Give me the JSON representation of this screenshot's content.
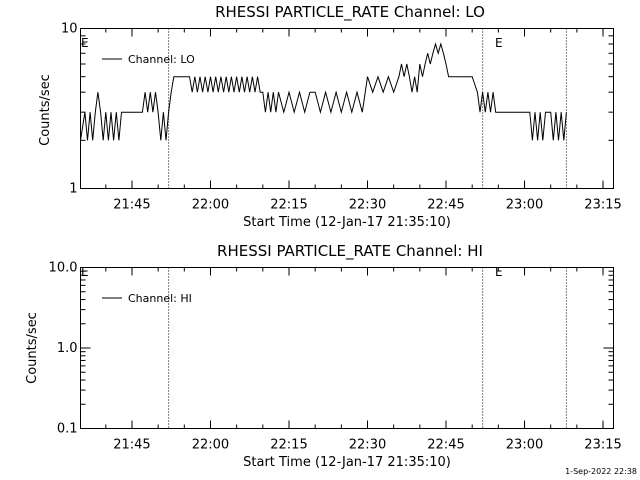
{
  "chart_data": [
    {
      "type": "line",
      "title": "RHESSI PARTICLE_RATE Channel: LO",
      "xlabel": "Start Time (12-Jan-17 21:35:10)",
      "ylabel": "Counts/sec",
      "ylog": true,
      "ylim": [
        1,
        10
      ],
      "xlim": [
        "21:35:10",
        "23:17:00"
      ],
      "ytick_labels": [
        "1",
        "10"
      ],
      "yticks": [
        1,
        10
      ],
      "xtick_labels": [
        "21:45",
        "22:00",
        "22:15",
        "22:30",
        "22:45",
        "23:00",
        "23:15"
      ],
      "legend": {
        "label": "Channel: LO",
        "placement": "top-left"
      },
      "event_markers": [
        {
          "label": "E",
          "time": "21:35:10"
        },
        {
          "label": "E",
          "time": "22:52:00"
        }
      ],
      "vlines": [
        "21:52:00",
        "22:52:00",
        "23:08:00"
      ],
      "series": [
        {
          "name": "Channel: LO",
          "x": [
            "21:35:10",
            "21:36:00",
            "21:36:30",
            "21:37:00",
            "21:37:30",
            "21:38:00",
            "21:38:30",
            "21:39:00",
            "21:39:30",
            "21:40:00",
            "21:40:30",
            "21:41:00",
            "21:41:30",
            "21:42:00",
            "21:42:30",
            "21:43:00",
            "21:45:00",
            "21:47:00",
            "21:47:30",
            "21:48:00",
            "21:48:30",
            "21:49:00",
            "21:49:30",
            "21:50:00",
            "21:50:30",
            "21:51:00",
            "21:51:30",
            "21:52:00",
            "21:52:30",
            "21:53:00",
            "21:56:00",
            "21:56:30",
            "21:57:00",
            "21:57:30",
            "21:58:00",
            "21:58:30",
            "21:59:00",
            "21:59:30",
            "22:00:00",
            "22:00:30",
            "22:01:00",
            "22:01:30",
            "22:02:00",
            "22:02:30",
            "22:03:00",
            "22:03:30",
            "22:04:00",
            "22:04:30",
            "22:05:00",
            "22:05:30",
            "22:06:00",
            "22:06:30",
            "22:07:00",
            "22:07:30",
            "22:08:00",
            "22:08:30",
            "22:09:00",
            "22:09:30",
            "22:10:00",
            "22:10:30",
            "22:11:00",
            "22:11:30",
            "22:12:00",
            "22:12:30",
            "22:13:00",
            "22:14:00",
            "22:15:00",
            "22:16:00",
            "22:17:00",
            "22:18:00",
            "22:19:00",
            "22:20:00",
            "22:21:00",
            "22:22:00",
            "22:23:00",
            "22:24:00",
            "22:25:00",
            "22:26:00",
            "22:27:00",
            "22:28:00",
            "22:29:00",
            "22:30:00",
            "22:31:00",
            "22:32:00",
            "22:33:00",
            "22:34:00",
            "22:35:00",
            "22:36:00",
            "22:36:30",
            "22:37:00",
            "22:37:30",
            "22:38:00",
            "22:38:30",
            "22:39:00",
            "22:39:30",
            "22:40:00",
            "22:40:30",
            "22:41:00",
            "22:41:30",
            "22:42:00",
            "22:42:30",
            "22:43:00",
            "22:43:30",
            "22:44:00",
            "22:44:30",
            "22:45:00",
            "22:45:30",
            "22:46:00",
            "22:47:00",
            "22:48:00",
            "22:49:00",
            "22:50:00",
            "22:51:00",
            "22:51:30",
            "22:52:00",
            "22:52:30",
            "22:53:00",
            "22:53:30",
            "22:54:00",
            "22:54:30",
            "22:55:00",
            "22:56:00",
            "22:57:00",
            "22:58:00",
            "22:59:00",
            "23:00:00",
            "23:01:00",
            "23:01:30",
            "23:02:00",
            "23:02:30",
            "23:03:00",
            "23:03:30",
            "23:04:00",
            "23:05:00",
            "23:05:30",
            "23:06:00",
            "23:06:30",
            "23:07:00",
            "23:07:30",
            "23:08:00"
          ],
          "y": [
            2,
            3,
            2,
            3,
            2,
            3,
            4,
            3,
            2,
            3,
            2,
            3,
            2,
            3,
            2,
            3,
            3,
            3,
            4,
            3,
            4,
            3,
            4,
            3,
            2,
            3,
            2,
            3,
            4,
            5,
            5,
            4,
            5,
            4,
            5,
            4,
            5,
            4,
            5,
            4,
            5,
            4,
            5,
            4,
            5,
            4,
            5,
            4,
            5,
            4,
            5,
            4,
            5,
            4,
            5,
            4,
            5,
            4,
            4,
            3,
            4,
            3,
            4,
            3,
            4,
            3,
            4,
            3,
            4,
            3,
            4,
            4,
            3,
            4,
            3,
            4,
            3,
            4,
            3,
            4,
            3,
            5,
            4,
            5,
            4,
            5,
            4,
            5,
            6,
            5,
            6,
            5,
            4,
            5,
            4,
            6,
            5,
            6,
            7,
            6,
            7,
            8,
            7,
            8,
            7,
            6,
            5,
            5,
            5,
            5,
            5,
            5,
            4,
            3,
            4,
            3,
            4,
            3,
            4,
            3,
            3,
            3,
            3,
            3,
            3,
            3,
            3,
            2,
            3,
            2,
            3,
            2,
            3,
            3,
            2,
            3,
            2,
            3,
            2,
            3
          ]
        }
      ]
    },
    {
      "type": "line",
      "title": "RHESSI PARTICLE_RATE Channel: HI",
      "xlabel": "Start Time (12-Jan-17 21:35:10)",
      "ylabel": "Counts/sec",
      "ylog": true,
      "ylim": [
        0.1,
        10
      ],
      "xlim": [
        "21:35:10",
        "23:17:00"
      ],
      "ytick_labels": [
        "0.1",
        "1.0",
        "10.0"
      ],
      "yticks": [
        0.1,
        1,
        10
      ],
      "xtick_labels": [
        "21:45",
        "22:00",
        "22:15",
        "22:30",
        "22:45",
        "23:00",
        "23:15"
      ],
      "legend": {
        "label": "Channel: HI",
        "placement": "top-left"
      },
      "event_markers": [
        {
          "label": "E",
          "time": "21:35:10"
        },
        {
          "label": "E",
          "time": "22:52:00"
        }
      ],
      "vlines": [
        "21:52:00",
        "22:52:00",
        "23:08:00"
      ],
      "series": [
        {
          "name": "Channel: HI",
          "x": [],
          "y": []
        }
      ]
    }
  ],
  "footer": {
    "timestamp": "1-Sep-2022 22:38"
  }
}
